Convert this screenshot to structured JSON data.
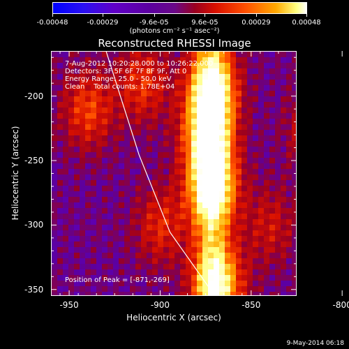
{
  "chart_data": {
    "type": "heatmap",
    "title": "Reconstructed RHESSI Image",
    "xlabel": "Heliocentric X (arcsec)",
    "ylabel": "Heliocentric Y (arcsec)",
    "xlim": [
      -960,
      -825
    ],
    "ylim": [
      -355,
      -165
    ],
    "xticks": [
      -950,
      -900,
      -850,
      -800
    ],
    "yticks": [
      -350,
      -300,
      -250,
      -200
    ],
    "colorbar": {
      "ticks": [
        "-0.00048",
        "-0.00029",
        "-9.6e-05",
        "9.6e-05",
        "0.00029",
        "0.00048"
      ],
      "tick_values": [
        -0.00048,
        -0.00029,
        -9.6e-05,
        9.6e-05,
        0.00029,
        0.00048
      ],
      "units": "(photons cm⁻² s⁻¹ asec⁻²)",
      "colors": [
        "#0000ff",
        "#6000c8",
        "#5c00a0",
        "#9a0020",
        "#d81000",
        "#ff5000",
        "#ffa800",
        "#ffff80",
        "#ffffff"
      ]
    },
    "annotations": {
      "time_range": "7-Aug-2012 10:20:28.000 to 10:26:22.000",
      "detectors": "Detectors: 3F 5F 6F 7F 8F 9F, Att 0",
      "energy": "Energy Range: 25.0 - 50.0 keV",
      "method": "Clean    Total counts: 1.78E+04",
      "peak": "Position of Peak = [-871,-269]"
    },
    "peak": [
      -871,
      -269
    ],
    "limb_curve": [
      [
        -930,
        -165
      ],
      [
        -912,
        -245
      ],
      [
        -895,
        -305
      ],
      [
        -870,
        -355
      ]
    ],
    "bright_features": [
      {
        "x": -872,
        "y": -270,
        "intensity": 1.0
      },
      {
        "x": -872,
        "y": -195,
        "intensity": 0.9
      },
      {
        "x": -868,
        "y": -345,
        "intensity": 0.85
      },
      {
        "x": -875,
        "y": -230,
        "intensity": 0.8
      },
      {
        "x": -940,
        "y": -210,
        "intensity": 0.55
      },
      {
        "x": -910,
        "y": -190,
        "intensity": 0.5
      },
      {
        "x": -900,
        "y": -300,
        "intensity": 0.45
      },
      {
        "x": -815,
        "y": -225,
        "intensity": 0.5
      },
      {
        "x": -840,
        "y": -300,
        "intensity": 0.35
      }
    ]
  },
  "footer": {
    "date": "9-May-2014 06:18"
  }
}
